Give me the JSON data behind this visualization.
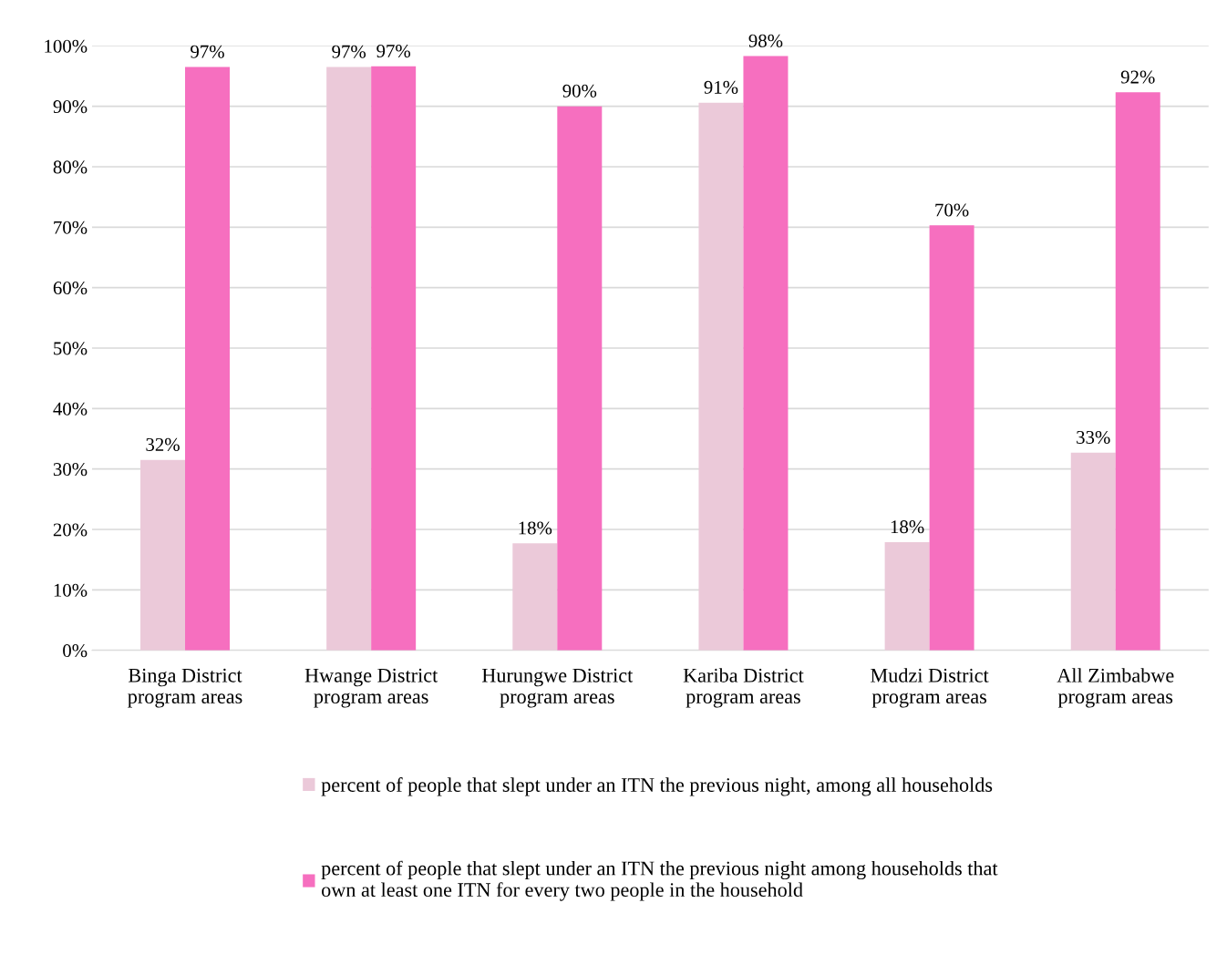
{
  "chart_data": {
    "type": "bar",
    "categories": [
      "Binga District\nprogram areas",
      "Hwange District\nprogram areas",
      "Hurungwe District\nprogram areas",
      "Kariba District\nprogram areas",
      "Mudzi District\nprogram areas",
      "All Zimbabwe\nprogram areas"
    ],
    "series": [
      {
        "name": "percent of people that slept under an ITN the previous night, among all households",
        "color": "#ebc9d9",
        "values": [
          31.5,
          96.5,
          17.7,
          90.6,
          17.9,
          32.7
        ],
        "value_labels": [
          "32%",
          "97%",
          "18%",
          "91%",
          "18%",
          "33%"
        ]
      },
      {
        "name": "percent of people that slept under an ITN the previous night among households that\nown at least one ITN for every two people in the household",
        "color": "#f66fbf",
        "values": [
          96.5,
          96.6,
          90.0,
          98.3,
          70.3,
          92.3
        ],
        "value_labels": [
          "97%",
          "97%",
          "90%",
          "98%",
          "70%",
          "92%"
        ]
      }
    ],
    "ylim": [
      0,
      100
    ],
    "yticks": [
      {
        "value": 0,
        "label": "0%"
      },
      {
        "value": 10,
        "label": "10%"
      },
      {
        "value": 20,
        "label": "20%"
      },
      {
        "value": 30,
        "label": "30%"
      },
      {
        "value": 40,
        "label": "40%"
      },
      {
        "value": 50,
        "label": "50%"
      },
      {
        "value": 60,
        "label": "60%"
      },
      {
        "value": 70,
        "label": "70%"
      },
      {
        "value": 80,
        "label": "80%"
      },
      {
        "value": 90,
        "label": "90%"
      },
      {
        "value": 100,
        "label": "100%"
      }
    ],
    "grid": "y",
    "legend": "bottom"
  }
}
